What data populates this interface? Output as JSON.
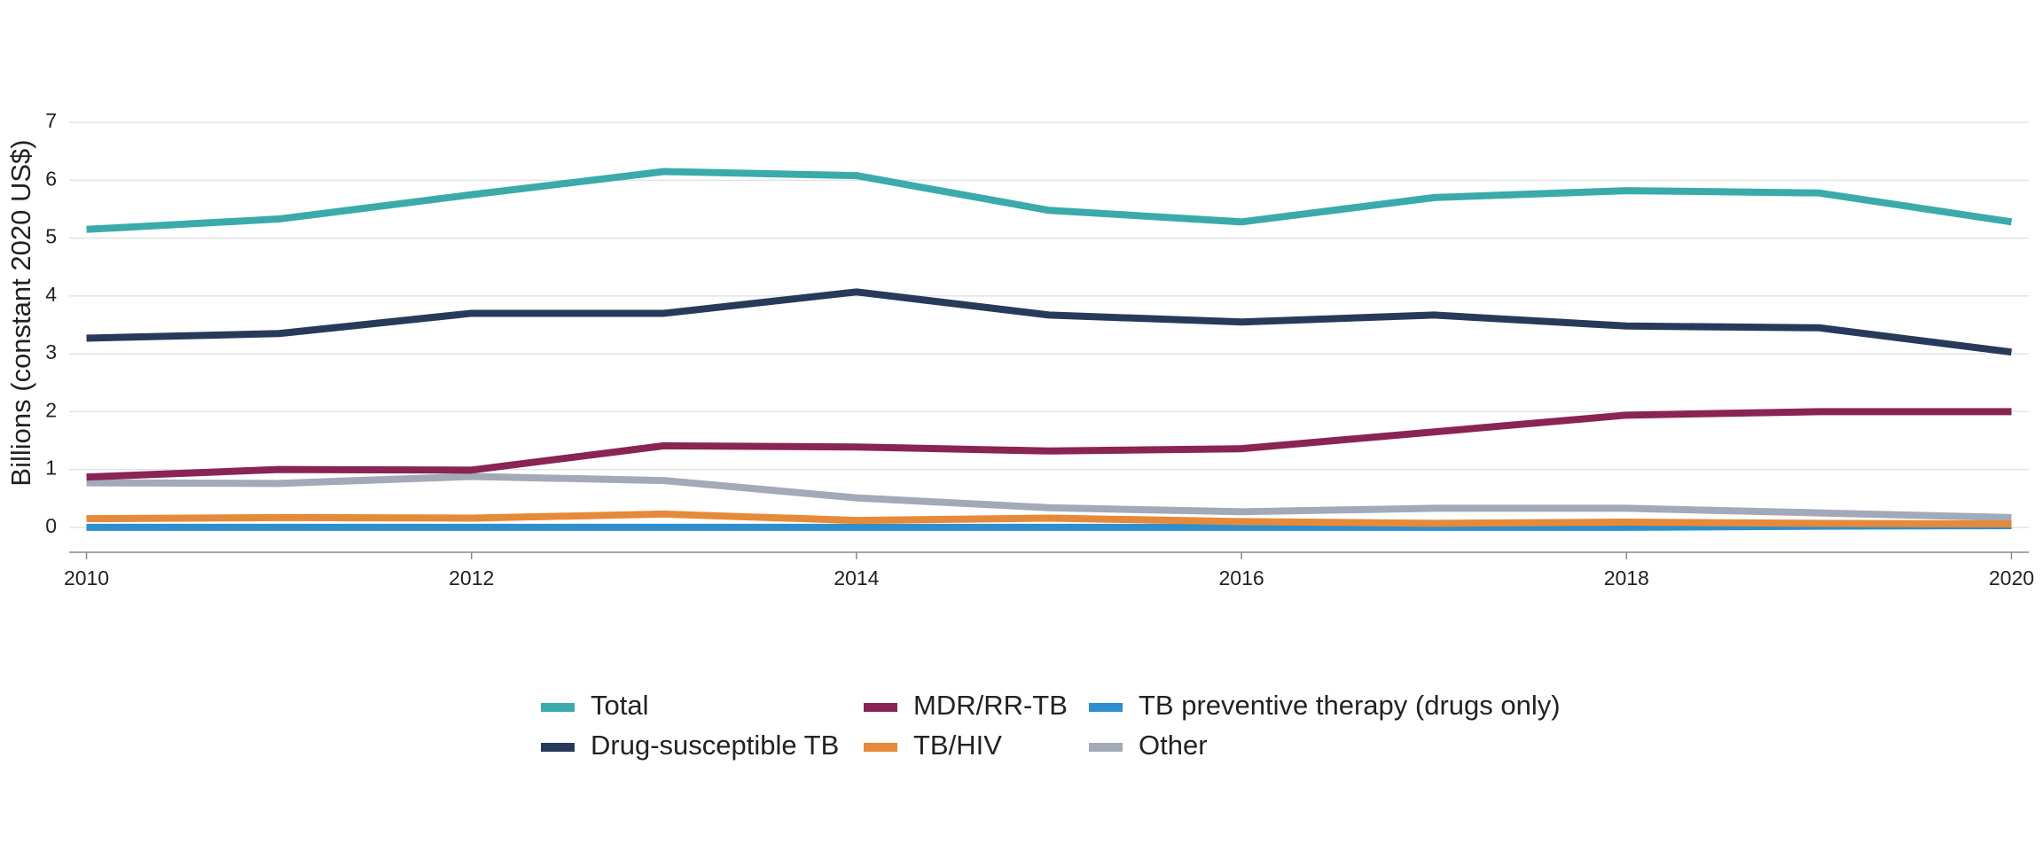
{
  "chart_data": {
    "type": "line",
    "ylabel": "Billions (constant 2020 US$)",
    "x": [
      2010,
      2011,
      2012,
      2013,
      2014,
      2015,
      2016,
      2017,
      2018,
      2019,
      2020
    ],
    "xlim": [
      2009.91,
      2020.09
    ],
    "xticks": [
      2010,
      2012,
      2014,
      2016,
      2018,
      2020
    ],
    "ylim": [
      -0.43,
      7.2
    ],
    "yticks": [
      0,
      1,
      2,
      3,
      4,
      5,
      6,
      7
    ],
    "grid": true,
    "legend": "bottom",
    "series": [
      {
        "name": "Total",
        "color": "#3aabaa",
        "values": [
          5.15,
          5.33,
          5.75,
          6.15,
          6.08,
          5.48,
          5.28,
          5.7,
          5.82,
          5.78,
          5.28
        ]
      },
      {
        "name": "Drug-susceptible TB",
        "color": "#283a5a",
        "values": [
          3.27,
          3.35,
          3.7,
          3.7,
          4.07,
          3.67,
          3.55,
          3.67,
          3.48,
          3.45,
          3.03
        ]
      },
      {
        "name": "MDR/RR-TB",
        "color": "#8a2454",
        "values": [
          0.87,
          1.0,
          0.99,
          1.41,
          1.39,
          1.32,
          1.36,
          1.65,
          1.94,
          2.0,
          2.0
        ]
      },
      {
        "name": "TB/HIV",
        "color": "#e68a3a",
        "values": [
          0.15,
          0.17,
          0.16,
          0.23,
          0.12,
          0.16,
          0.1,
          0.07,
          0.09,
          0.07,
          0.06
        ]
      },
      {
        "name": "TB preventive therapy (drugs only)",
        "color": "#2e8fcf",
        "values": [
          0.0,
          0.0,
          0.0,
          0.0,
          0.0,
          0.0,
          0.0,
          0.0,
          0.0,
          0.02,
          0.03
        ]
      },
      {
        "name": "Other",
        "color": "#a2aab8",
        "values": [
          0.77,
          0.76,
          0.88,
          0.81,
          0.51,
          0.34,
          0.27,
          0.33,
          0.33,
          0.25,
          0.17
        ]
      }
    ]
  }
}
